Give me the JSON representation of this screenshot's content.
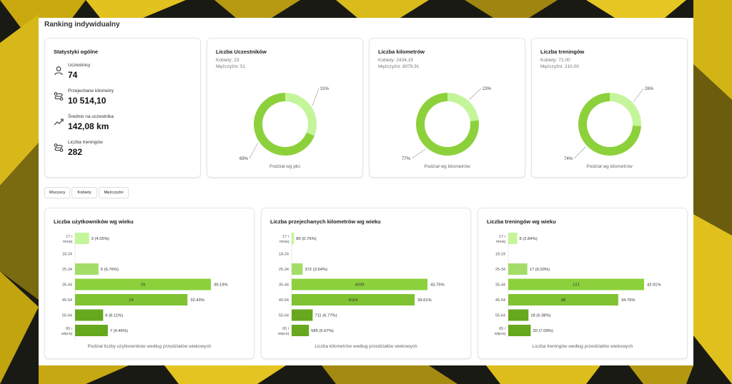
{
  "colors": {
    "light": "#c5f59a",
    "mid": "#a3dd68",
    "dark": "#7fc232",
    "darker": "#66a81e",
    "accent": "#8cd13c"
  },
  "page": {
    "title": "Ranking indywidualny"
  },
  "stats": {
    "title": "Statystyki ogólne",
    "items": [
      {
        "icon": "person-icon",
        "label": "Uczestnicy",
        "value": "74"
      },
      {
        "icon": "route-icon",
        "label": "Przejechane kilometry",
        "value": "10 514,10"
      },
      {
        "icon": "trend-up-icon",
        "label": "Średnio na uczestnika",
        "value": "142,08 km"
      },
      {
        "icon": "route-icon",
        "label": "Liczba treningów",
        "value": "282"
      }
    ]
  },
  "tabs": [
    {
      "label": "Wszyscy"
    },
    {
      "label": "Kobiety"
    },
    {
      "label": "Mężczyźni"
    }
  ],
  "chart_data": [
    {
      "type": "pie",
      "title": "Liczba Uczestników",
      "subtitle_women": "Kobiety: 23",
      "subtitle_men": "Mężczyźni: 51",
      "caption": "Podział wg płci",
      "slices": [
        {
          "value": 31,
          "label": "31%"
        },
        {
          "value": 69,
          "label": "69%"
        }
      ]
    },
    {
      "type": "pie",
      "title": "Liczba kilometrów",
      "subtitle_women": "Kobiety: 2434,19",
      "subtitle_men": "Mężczyźni: 8079,91",
      "caption": "Podział wg kilometrów",
      "slices": [
        {
          "value": 23,
          "label": "23%"
        },
        {
          "value": 77,
          "label": "77%"
        }
      ]
    },
    {
      "type": "pie",
      "title": "Liczba treningów",
      "subtitle_women": "Kobiety: 72,00",
      "subtitle_men": "Mężczyźni: 210,00",
      "caption": "Podział wg kilometrów",
      "slices": [
        {
          "value": 26,
          "label": "26%"
        },
        {
          "value": 74,
          "label": "74%"
        }
      ]
    },
    {
      "type": "bar",
      "title": "Liczba użytkowników wg wieku",
      "caption": "Podział liczby użytkowników według przedziałów wiekowych",
      "categories": [
        [
          "17 i",
          "mniej"
        ],
        [
          "18-24"
        ],
        [
          "25-34"
        ],
        [
          "35-44"
        ],
        [
          "45-54"
        ],
        [
          "55-64"
        ],
        [
          "65 i",
          "więcej"
        ]
      ],
      "values": [
        3,
        0,
        5,
        29,
        24,
        6,
        7
      ],
      "labels": [
        "3 (4.05%)",
        "",
        "5 (6.76%)",
        "29",
        "24",
        "6 (8.11%)",
        "7 (9.46%)"
      ],
      "pct_out": [
        "",
        "",
        "",
        "39.19%",
        "32.43%",
        "",
        ""
      ]
    },
    {
      "type": "bar",
      "title": "Liczba przejechanych kilometrów wg wieku",
      "caption": "Liczba kilometrów według przedziałów wiekowych",
      "categories": [
        [
          "17 i",
          "mniej"
        ],
        [
          "18-24"
        ],
        [
          "25-34"
        ],
        [
          "35-44"
        ],
        [
          "45-54"
        ],
        [
          "55-64"
        ],
        [
          "65 i",
          "więcej"
        ]
      ],
      "values": [
        80,
        0,
        372,
        4599,
        4164,
        711,
        585
      ],
      "labels": [
        "80 (0.76%)",
        "",
        "372 (3.54%)",
        "4599",
        "4164",
        "711 (6.77%)",
        "585 (5.57%)"
      ],
      "pct_out": [
        "",
        "",
        "",
        "43.75%",
        "39.61%",
        "",
        ""
      ]
    },
    {
      "type": "bar",
      "title": "Liczba treningów wg wieku",
      "caption": "Liczba treningów według przedziałów wiekowych",
      "categories": [
        [
          "17 i",
          "mniej"
        ],
        [
          "18-24"
        ],
        [
          "25-34"
        ],
        [
          "35-44"
        ],
        [
          "45-54"
        ],
        [
          "55-64"
        ],
        [
          "65 i",
          "więcej"
        ]
      ],
      "values": [
        8,
        0,
        17,
        121,
        98,
        18,
        20
      ],
      "labels": [
        "8 (2.84%)",
        "",
        "17 (6.03%)",
        "121",
        "98",
        "18 (6.38%)",
        "20 (7.09%)"
      ],
      "pct_out": [
        "",
        "",
        "",
        "42.91%",
        "34.75%",
        "",
        ""
      ]
    }
  ]
}
